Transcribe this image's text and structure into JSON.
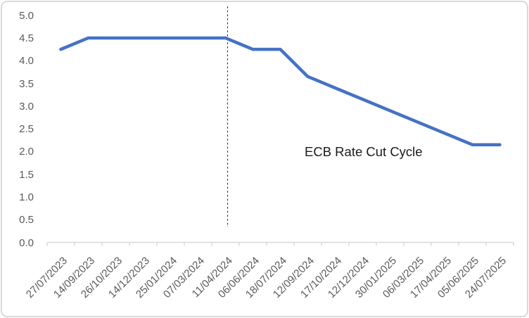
{
  "chart_data": {
    "type": "line",
    "title": "",
    "xlabel": "",
    "ylabel": "",
    "categories": [
      "27/07/2023",
      "14/09/2023",
      "26/10/2023",
      "14/12/2023",
      "25/01/2024",
      "07/03/2024",
      "11/04/2024",
      "06/06/2024",
      "18/07/2024",
      "12/09/2024",
      "17/10/2024",
      "12/12/2024",
      "30/01/2025",
      "06/03/2025",
      "17/04/2025",
      "05/06/2025",
      "24/07/2025"
    ],
    "values": [
      4.25,
      4.5,
      4.5,
      4.5,
      4.5,
      4.5,
      4.5,
      4.25,
      4.25,
      3.65,
      3.4,
      3.15,
      2.9,
      2.65,
      2.4,
      2.15,
      2.15
    ],
    "ylim": [
      0.0,
      5.0
    ],
    "ytick_step": 0.5,
    "ytick_labels": [
      "0.0",
      "0.5",
      "1.0",
      "1.5",
      "2.0",
      "2.5",
      "3.0",
      "3.5",
      "4.0",
      "4.5",
      "5.0"
    ],
    "grid": false,
    "legend_position": "none",
    "annotation": {
      "text": "ECB Rate Cut Cycle"
    },
    "marker_line": {
      "category": "11/04/2024",
      "style": "dashed"
    },
    "colors": {
      "line": "#4472C4",
      "axis_line": "#D9D9D9",
      "tick_label": "#595959",
      "annotation_text": "#1A1A1A",
      "marker_line": "#333333",
      "frame_border": "#D9D9D9",
      "background": "#FFFFFF"
    }
  }
}
